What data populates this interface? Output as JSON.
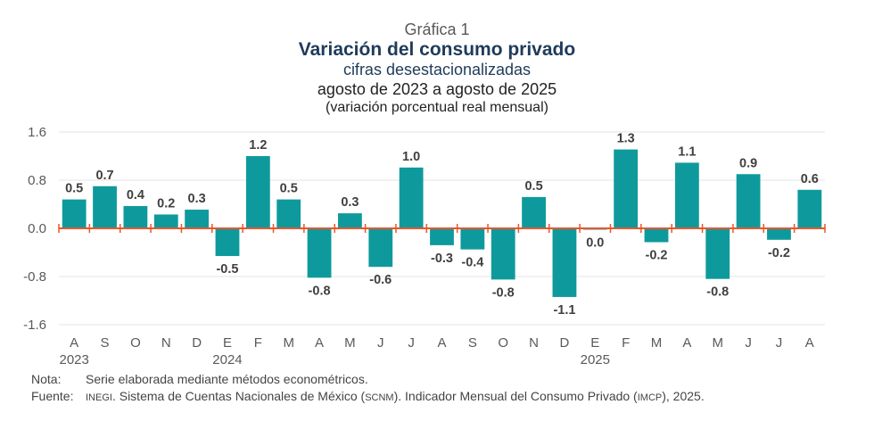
{
  "header": {
    "figure_label": "Gráfica 1",
    "title": "Variación del consumo privado",
    "subtitle": "cifras desestacionalizadas",
    "period": "agosto de 2023 a agosto de 2025",
    "unit": "(variación porcentual real mensual)"
  },
  "chart_data": {
    "type": "bar",
    "title": "Variación del consumo privado",
    "xlabel": "",
    "ylabel": "",
    "ylim": [
      -1.6,
      1.6
    ],
    "yticks": [
      1.6,
      0.8,
      0.0,
      -0.8,
      -1.6
    ],
    "ytick_labels": [
      "1.6",
      "0.8",
      "0.0",
      "-0.8",
      "-1.6"
    ],
    "grid": true,
    "categories": [
      "A",
      "S",
      "O",
      "N",
      "D",
      "E",
      "F",
      "M",
      "A",
      "M",
      "J",
      "J",
      "A",
      "S",
      "O",
      "N",
      "D",
      "E",
      "F",
      "M",
      "A",
      "M",
      "J",
      "J",
      "A"
    ],
    "year_labels": [
      {
        "index": 0,
        "label": "2023"
      },
      {
        "index": 5,
        "label": "2024"
      },
      {
        "index": 17,
        "label": "2025"
      }
    ],
    "values": [
      0.5,
      0.7,
      0.4,
      0.2,
      0.3,
      -0.5,
      1.2,
      0.5,
      -0.8,
      0.3,
      -0.6,
      1.0,
      -0.3,
      -0.4,
      -0.8,
      0.5,
      -1.1,
      0.0,
      1.3,
      -0.2,
      1.1,
      -0.8,
      0.9,
      -0.2,
      0.6
    ],
    "data_labels": [
      "0.5",
      "0.7",
      "0.4",
      "0.2",
      "0.3",
      "-0.5",
      "1.2",
      "0.5",
      "-0.8",
      "0.3",
      "-0.6",
      "1.0",
      "-0.3",
      "-0.4",
      "-0.8",
      "0.5",
      "-1.1",
      "0.0",
      "1.3",
      "-0.2",
      "1.1",
      "-0.8",
      "0.9",
      "-0.2",
      "0.6"
    ],
    "bar_values_precise": [
      0.48,
      0.7,
      0.37,
      0.23,
      0.31,
      -0.46,
      1.2,
      0.48,
      -0.82,
      0.25,
      -0.64,
      1.01,
      -0.28,
      -0.35,
      -0.85,
      0.52,
      -1.14,
      -0.02,
      1.31,
      -0.23,
      1.09,
      -0.84,
      0.9,
      -0.19,
      0.64
    ],
    "colors": {
      "bar": "#0e9a9c",
      "zero_axis": "#e8572a",
      "grid": "#e3e3e3",
      "tick_text": "#595959",
      "label_text": "#404040"
    }
  },
  "notes": {
    "nota_label": "Nota:",
    "nota_text": "Serie elaborada mediante métodos econométricos.",
    "fuente_label": "Fuente:",
    "fuente_inegi": "INEGI",
    "fuente_text_1": ". Sistema de Cuentas Nacionales de México (",
    "fuente_scnm": "SCNM",
    "fuente_text_2": "). Indicador Mensual del Consumo Privado (",
    "fuente_imcp": "IMCP",
    "fuente_text_3": "), 2025."
  }
}
